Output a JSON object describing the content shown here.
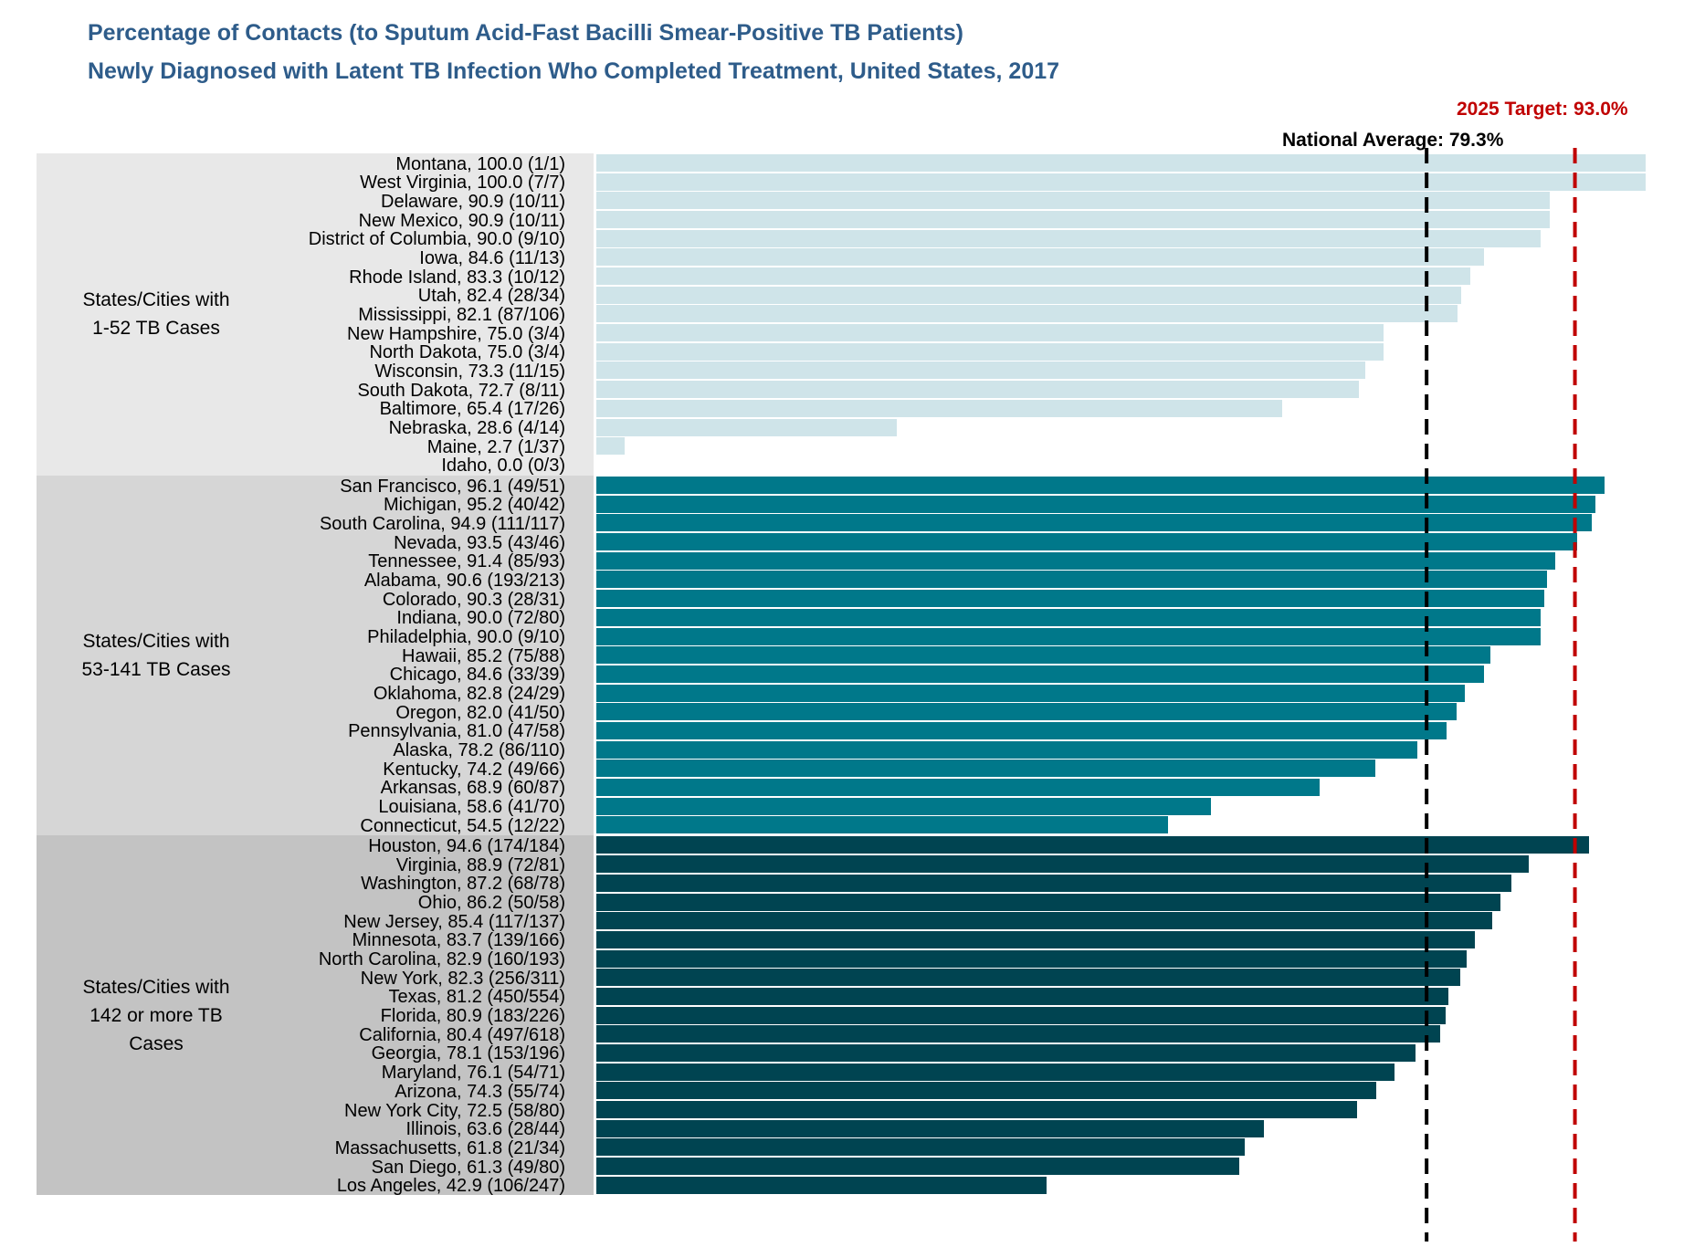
{
  "title_line1": "Percentage of Contacts (to Sputum Acid-Fast Bacilli Smear-Positive TB Patients)",
  "title_line2": "Newly Diagnosed with Latent TB Infection Who Completed Treatment, United States, 2017",
  "national_average_label": "National Average: 79.3%",
  "target_label": "2025 Target: 93.0%",
  "colors": {
    "small": "#cfe4e9",
    "medium": "#00788a",
    "large": "#004451",
    "bg_small": "#e8e8e8",
    "bg_medium": "#d6d6d6",
    "bg_large": "#c3c3c3",
    "national_line": "#000000",
    "target_line": "#c00000"
  },
  "chart_data": {
    "type": "bar",
    "orientation": "horizontal",
    "title": "Percentage of Contacts (to Sputum Acid-Fast Bacilli Smear-Positive TB Patients) Newly Diagnosed with Latent TB Infection Who Completed Treatment, United States, 2017",
    "xlim": [
      0,
      100
    ],
    "reference_lines": [
      {
        "name": "National Average",
        "value": 79.3
      },
      {
        "name": "2025 Target",
        "value": 93.0
      }
    ],
    "groups": [
      {
        "key": "small",
        "label_line1": "States/Cities with",
        "label_line2": "1-52 TB Cases",
        "label_line3": "",
        "rows": [
          {
            "name": "Montana, 100.0 (1/1)",
            "value": 100.0
          },
          {
            "name": "West Virginia, 100.0 (7/7)",
            "value": 100.0
          },
          {
            "name": "Delaware, 90.9 (10/11)",
            "value": 90.9
          },
          {
            "name": "New Mexico, 90.9 (10/11)",
            "value": 90.9
          },
          {
            "name": "District of Columbia, 90.0 (9/10)",
            "value": 90.0
          },
          {
            "name": "Iowa, 84.6 (11/13)",
            "value": 84.6
          },
          {
            "name": "Rhode Island, 83.3 (10/12)",
            "value": 83.3
          },
          {
            "name": "Utah, 82.4 (28/34)",
            "value": 82.4
          },
          {
            "name": "Mississippi, 82.1 (87/106)",
            "value": 82.1
          },
          {
            "name": "New Hampshire, 75.0 (3/4)",
            "value": 75.0
          },
          {
            "name": "North Dakota, 75.0 (3/4)",
            "value": 75.0
          },
          {
            "name": "Wisconsin, 73.3 (11/15)",
            "value": 73.3
          },
          {
            "name": "South Dakota, 72.7 (8/11)",
            "value": 72.7
          },
          {
            "name": "Baltimore, 65.4 (17/26)",
            "value": 65.4
          },
          {
            "name": "Nebraska, 28.6 (4/14)",
            "value": 28.6
          },
          {
            "name": "Maine, 2.7 (1/37)",
            "value": 2.7
          },
          {
            "name": "Idaho, 0.0 (0/3)",
            "value": 0.0
          }
        ]
      },
      {
        "key": "medium",
        "label_line1": "States/Cities with",
        "label_line2": "53-141 TB Cases",
        "label_line3": "",
        "rows": [
          {
            "name": "San Francisco, 96.1 (49/51)",
            "value": 96.1
          },
          {
            "name": "Michigan, 95.2 (40/42)",
            "value": 95.2
          },
          {
            "name": "South Carolina, 94.9 (111/117)",
            "value": 94.9
          },
          {
            "name": "Nevada, 93.5 (43/46)",
            "value": 93.5
          },
          {
            "name": "Tennessee, 91.4 (85/93)",
            "value": 91.4
          },
          {
            "name": "Alabama, 90.6 (193/213)",
            "value": 90.6
          },
          {
            "name": "Colorado, 90.3 (28/31)",
            "value": 90.3
          },
          {
            "name": "Indiana, 90.0 (72/80)",
            "value": 90.0
          },
          {
            "name": "Philadelphia, 90.0 (9/10)",
            "value": 90.0
          },
          {
            "name": "Hawaii, 85.2 (75/88)",
            "value": 85.2
          },
          {
            "name": "Chicago, 84.6 (33/39)",
            "value": 84.6
          },
          {
            "name": "Oklahoma, 82.8 (24/29)",
            "value": 82.8
          },
          {
            "name": "Oregon, 82.0 (41/50)",
            "value": 82.0
          },
          {
            "name": "Pennsylvania, 81.0 (47/58)",
            "value": 81.0
          },
          {
            "name": "Alaska, 78.2 (86/110)",
            "value": 78.2
          },
          {
            "name": "Kentucky, 74.2 (49/66)",
            "value": 74.2
          },
          {
            "name": "Arkansas, 68.9 (60/87)",
            "value": 68.9
          },
          {
            "name": "Louisiana, 58.6 (41/70)",
            "value": 58.6
          },
          {
            "name": "Connecticut, 54.5 (12/22)",
            "value": 54.5
          }
        ]
      },
      {
        "key": "large",
        "label_line1": "States/Cities with",
        "label_line2": "142 or more TB",
        "label_line3": "Cases",
        "rows": [
          {
            "name": "Houston, 94.6 (174/184)",
            "value": 94.6
          },
          {
            "name": "Virginia, 88.9 (72/81)",
            "value": 88.9
          },
          {
            "name": "Washington, 87.2 (68/78)",
            "value": 87.2
          },
          {
            "name": "Ohio, 86.2 (50/58)",
            "value": 86.2
          },
          {
            "name": "New Jersey, 85.4 (117/137)",
            "value": 85.4
          },
          {
            "name": "Minnesota, 83.7 (139/166)",
            "value": 83.7
          },
          {
            "name": "North Carolina, 82.9 (160/193)",
            "value": 82.9
          },
          {
            "name": "New York, 82.3 (256/311)",
            "value": 82.3
          },
          {
            "name": "Texas, 81.2 (450/554)",
            "value": 81.2
          },
          {
            "name": "Florida, 80.9 (183/226)",
            "value": 80.9
          },
          {
            "name": "California, 80.4 (497/618)",
            "value": 80.4
          },
          {
            "name": "Georgia, 78.1 (153/196)",
            "value": 78.1
          },
          {
            "name": "Maryland, 76.1 (54/71)",
            "value": 76.1
          },
          {
            "name": "Arizona, 74.3 (55/74)",
            "value": 74.3
          },
          {
            "name": "New York City, 72.5 (58/80)",
            "value": 72.5
          },
          {
            "name": "Illinois, 63.6 (28/44)",
            "value": 63.6
          },
          {
            "name": "Massachusetts, 61.8 (21/34)",
            "value": 61.8
          },
          {
            "name": "San Diego, 61.3 (49/80)",
            "value": 61.3
          },
          {
            "name": "Los Angeles, 42.9 (106/247)",
            "value": 42.9
          }
        ]
      }
    ]
  }
}
